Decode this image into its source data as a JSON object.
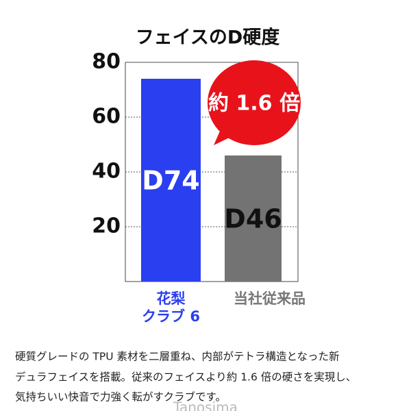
{
  "chart_data": {
    "type": "bar",
    "title": "フェイスのD硬度",
    "categories": [
      [
        "花梨",
        "クラブ 6"
      ],
      [
        "当社従来品"
      ]
    ],
    "values": [
      74,
      46
    ],
    "value_labels": [
      "D74",
      "D46"
    ],
    "colors": [
      "#2a3ff0",
      "#737373"
    ],
    "category_colors": [
      "#2a3ff0",
      "#777777"
    ],
    "value_label_colors": [
      "#ffffff",
      "#111111"
    ],
    "ylim": [
      0,
      80
    ],
    "yticks": [
      20,
      40,
      60,
      80
    ],
    "grid": true,
    "annotation": "約 1.6 倍",
    "annotation_color": "#e8121b"
  },
  "description": [
    "硬質グレードの TPU 素材を二層重ね、内部がテトラ構造となった新",
    "デュラフェイスを搭載。従来のフェイスより約 1.6 倍の硬さを実現し、",
    "気持ちいい快音で力強く転がすクラブです。"
  ],
  "watermark": "Tanosima"
}
